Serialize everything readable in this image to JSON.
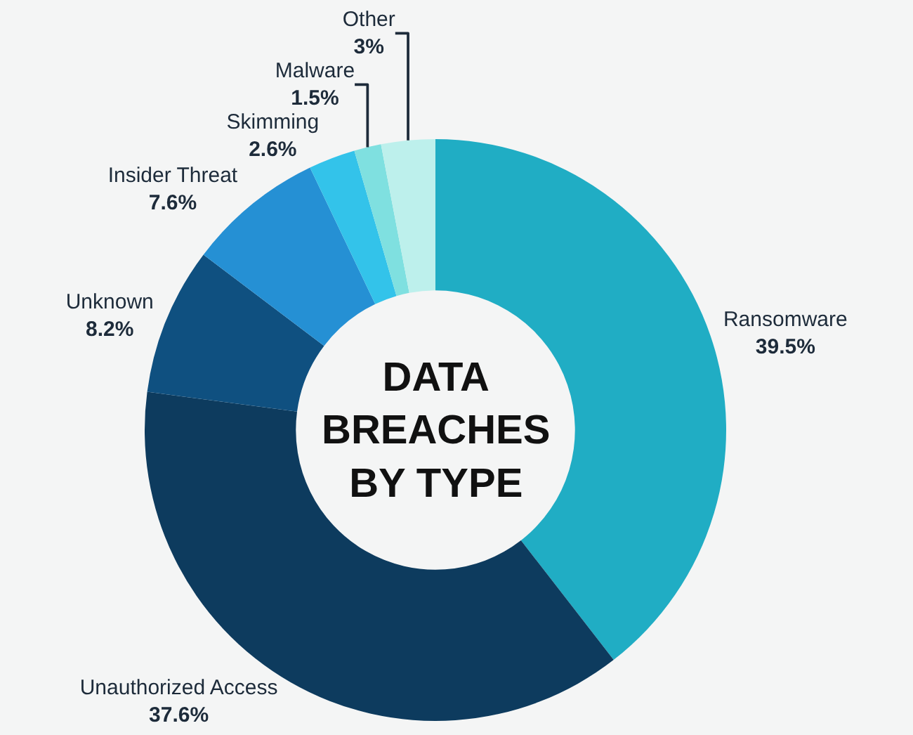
{
  "chart_data": {
    "type": "donut",
    "title": "DATA BREACHES BY TYPE",
    "categories": [
      "Ransomware",
      "Unauthorized Access",
      "Unknown",
      "Insider Threat",
      "Skimming",
      "Malware",
      "Other"
    ],
    "values": [
      39.5,
      37.6,
      8.2,
      7.6,
      2.6,
      1.5,
      3
    ],
    "colors": [
      "#20adc4",
      "#0d3b5e",
      "#0f5080",
      "#2590d4",
      "#33c3ea",
      "#7fe0e0",
      "#bdf0ec"
    ],
    "value_labels": [
      "39.5%",
      "37.6%",
      "8.2%",
      "7.6%",
      "2.6%",
      "1.5%",
      "3%"
    ],
    "legend": false
  }
}
